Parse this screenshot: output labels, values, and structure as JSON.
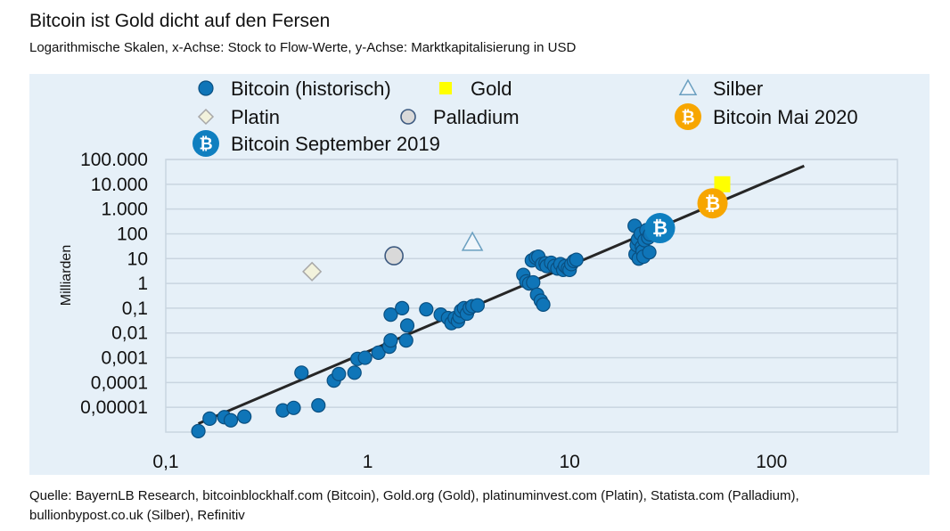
{
  "header": {
    "title": "Bitcoin ist Gold dicht auf den Fersen",
    "subtitle": "Logarithmische Skalen, x-Achse: Stock to Flow-Werte, y-Achse: Marktkapitalisierung in USD"
  },
  "footer": {
    "source_line1": "Quelle: BayernLB Research, bitcoinblockhalf.com (Bitcoin), Gold.org (Gold), platinuminvest.com (Platin), Statista.com (Palladium),",
    "source_line2": "bullionbypost.co.uk (Silber), Refinitiv"
  },
  "colors": {
    "panel_bg": "#e6f0f8",
    "bitcoin_hist": "#0f75b8",
    "bitcoin_hist_stroke": "#0a4f80",
    "gold": "#ffff00",
    "silver_stroke": "#6a9fc0",
    "platin_fill": "#f2f2dc",
    "platin_stroke": "#a8a8a8",
    "palladium_fill": "#d9d9d9",
    "palladium_stroke": "#3d5a80",
    "btc_may2020": "#f7a600",
    "btc_sep2019": "#0f7fc0",
    "trend": "#262626",
    "grid": "#c9d5e0"
  },
  "chart_data": {
    "type": "scatter",
    "title": "Bitcoin ist Gold dicht auf den Fersen",
    "subtitle": "Logarithmische Skalen, x-Achse: Stock to Flow-Werte, y-Achse: Marktkapitalisierung in USD",
    "xlabel": "",
    "ylabel": "Milliarden",
    "xscale": "log",
    "yscale": "log",
    "xlim": [
      0.1,
      420
    ],
    "ylim": [
      1e-06,
      100000
    ],
    "grid": "horizontal",
    "legend_position": "top",
    "xticks": [
      {
        "value": 0.1,
        "label": "0,1"
      },
      {
        "value": 1,
        "label": "1"
      },
      {
        "value": 10,
        "label": "10"
      },
      {
        "value": 100,
        "label": "100"
      }
    ],
    "yticks": [
      {
        "value": 100000,
        "label": "100.000"
      },
      {
        "value": 10000,
        "label": "10.000"
      },
      {
        "value": 1000,
        "label": "1.000"
      },
      {
        "value": 100,
        "label": "100"
      },
      {
        "value": 10,
        "label": "10"
      },
      {
        "value": 1,
        "label": "1"
      },
      {
        "value": 0.1,
        "label": "0,1"
      },
      {
        "value": 0.01,
        "label": "0,01"
      },
      {
        "value": 0.001,
        "label": "0,001"
      },
      {
        "value": 0.0001,
        "label": "0,0001"
      },
      {
        "value": 1e-05,
        "label": "0,00001"
      }
    ],
    "legend": [
      {
        "key": "bitcoin_hist",
        "label": "Bitcoin (historisch)",
        "marker": "circle"
      },
      {
        "key": "gold",
        "label": "Gold",
        "marker": "square"
      },
      {
        "key": "silver",
        "label": "Silber",
        "marker": "triangle"
      },
      {
        "key": "platin",
        "label": "Platin",
        "marker": "diamond"
      },
      {
        "key": "palladium",
        "label": "Palladium",
        "marker": "circle"
      },
      {
        "key": "btc_may2020",
        "label": "Bitcoin Mai 2020",
        "marker": "bitcoin"
      },
      {
        "key": "btc_sep2019",
        "label": "Bitcoin September 2019",
        "marker": "bitcoin"
      }
    ],
    "series": [
      {
        "name": "Bitcoin (historisch)",
        "key": "bitcoin_hist",
        "points": [
          [
            0.145,
            1.1e-06
          ],
          [
            0.165,
            3.5e-06
          ],
          [
            0.195,
            4e-06
          ],
          [
            0.21,
            3e-06
          ],
          [
            0.245,
            4.2e-06
          ],
          [
            0.38,
            7.5e-06
          ],
          [
            0.43,
            9.5e-06
          ],
          [
            0.47,
            0.00025
          ],
          [
            0.57,
            1.2e-05
          ],
          [
            0.68,
            0.00012
          ],
          [
            0.72,
            0.00022
          ],
          [
            0.86,
            0.00025
          ],
          [
            0.89,
            0.0009
          ],
          [
            0.97,
            0.001
          ],
          [
            1.13,
            0.0016
          ],
          [
            1.28,
            0.0028
          ],
          [
            1.3,
            0.005
          ],
          [
            1.3,
            0.055
          ],
          [
            1.48,
            0.1
          ],
          [
            1.55,
            0.005
          ],
          [
            1.57,
            0.02
          ],
          [
            1.95,
            0.09
          ],
          [
            2.3,
            0.055
          ],
          [
            2.5,
            0.04
          ],
          [
            2.6,
            0.025
          ],
          [
            2.7,
            0.04
          ],
          [
            2.8,
            0.03
          ],
          [
            2.85,
            0.045
          ],
          [
            2.9,
            0.08
          ],
          [
            3.0,
            0.1
          ],
          [
            3.1,
            0.06
          ],
          [
            3.2,
            0.1
          ],
          [
            3.3,
            0.12
          ],
          [
            3.5,
            0.13
          ],
          [
            5.9,
            2.2
          ],
          [
            6.1,
            1.2
          ],
          [
            6.3,
            1.0
          ],
          [
            6.6,
            1.1
          ],
          [
            6.5,
            8.5
          ],
          [
            6.8,
            11
          ],
          [
            7.0,
            12
          ],
          [
            6.9,
            0.35
          ],
          [
            7.2,
            0.2
          ],
          [
            7.4,
            0.14
          ],
          [
            7.3,
            6
          ],
          [
            7.6,
            6.5
          ],
          [
            7.7,
            5
          ],
          [
            8.1,
            6.8
          ],
          [
            8.4,
            5
          ],
          [
            8.7,
            4
          ],
          [
            9.0,
            6
          ],
          [
            9.3,
            3.5
          ],
          [
            9.5,
            5
          ],
          [
            9.8,
            4
          ],
          [
            10.0,
            3.5
          ],
          [
            10.2,
            6
          ],
          [
            10.5,
            8
          ],
          [
            10.8,
            9
          ],
          [
            21.0,
            210
          ],
          [
            21.2,
            15
          ],
          [
            21.5,
            35
          ],
          [
            21.8,
            60
          ],
          [
            22.0,
            10
          ],
          [
            22.5,
            100
          ],
          [
            22.8,
            30
          ],
          [
            23.0,
            20
          ],
          [
            23.5,
            55
          ],
          [
            23.2,
            12
          ],
          [
            24.0,
            140
          ],
          [
            24.5,
            70
          ],
          [
            24.8,
            18
          ],
          [
            25.0,
            95
          ],
          [
            26.0,
            120
          ]
        ]
      },
      {
        "name": "Gold",
        "key": "gold",
        "points": [
          [
            57,
            10000
          ]
        ]
      },
      {
        "name": "Silber",
        "key": "silver",
        "points": [
          [
            3.3,
            45
          ]
        ]
      },
      {
        "name": "Platin",
        "key": "platin",
        "points": [
          [
            0.53,
            3
          ]
        ]
      },
      {
        "name": "Palladium",
        "key": "palladium",
        "points": [
          [
            1.35,
            13
          ]
        ]
      },
      {
        "name": "Bitcoin Mai 2020",
        "key": "btc_may2020",
        "points": [
          [
            51,
            1700
          ]
        ]
      },
      {
        "name": "Bitcoin September 2019",
        "key": "btc_sep2019",
        "points": [
          [
            28,
            170
          ]
        ]
      }
    ],
    "trendline": {
      "name": "Trend",
      "points": [
        [
          0.145,
          2.2e-06
        ],
        [
          145,
          55000
        ]
      ]
    }
  }
}
